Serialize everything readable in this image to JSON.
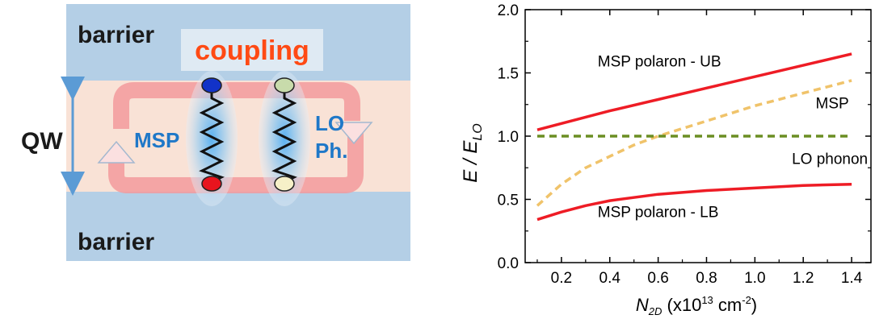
{
  "diagram": {
    "barrier_top": "barrier",
    "barrier_bottom": "barrier",
    "coupling": "coupling",
    "qw": "QW",
    "msp": "MSP",
    "lo_line1": "LO",
    "lo_line2": "Ph.",
    "colors": {
      "barrier": "#b4cfe6",
      "well": "#f9e2d6",
      "label_blue": "#1f78c8",
      "coupling_red": "#ff4a14",
      "arrow": "#f39a9c"
    }
  },
  "chart_data": {
    "type": "line",
    "xlabel": "N2D (x10^13 cm^-2)",
    "ylabel": "E / ELO",
    "xlabel_parts": {
      "N": "N",
      "sub": "2D",
      "rest": " (x10",
      "exp": "13",
      "unit": " cm",
      "unit_exp": "-2",
      "close": ")"
    },
    "ylabel_parts": {
      "E": "E / E",
      "sub": "LO"
    },
    "xlim": [
      0.05,
      1.48
    ],
    "ylim": [
      0.0,
      2.0
    ],
    "xticks": [
      "0.2",
      "0.4",
      "0.6",
      "0.8",
      "1.0",
      "1.2",
      "1.4"
    ],
    "yticks": [
      "0.0",
      "0.5",
      "1.0",
      "1.5",
      "2.0"
    ],
    "series": [
      {
        "name": "MSP polaron - UB",
        "color": "#ee1c25",
        "dash": "solid",
        "x": [
          0.1,
          0.2,
          0.4,
          0.6,
          0.8,
          1.0,
          1.2,
          1.4
        ],
        "y": [
          1.05,
          1.1,
          1.2,
          1.29,
          1.38,
          1.47,
          1.56,
          1.65
        ]
      },
      {
        "name": "MSP",
        "color": "#f0c36a",
        "dash": "dashed",
        "x": [
          0.1,
          0.2,
          0.3,
          0.4,
          0.5,
          0.6,
          0.7,
          0.8,
          1.0,
          1.2,
          1.4
        ],
        "y": [
          0.45,
          0.62,
          0.75,
          0.84,
          0.93,
          1.0,
          1.06,
          1.12,
          1.24,
          1.34,
          1.44
        ]
      },
      {
        "name": "LO phonon",
        "color": "#6b8e23",
        "dash": "dashed",
        "x": [
          0.1,
          1.4
        ],
        "y": [
          1.0,
          1.0
        ]
      },
      {
        "name": "MSP polaron - LB",
        "color": "#ee1c25",
        "dash": "solid",
        "x": [
          0.1,
          0.2,
          0.3,
          0.4,
          0.6,
          0.8,
          1.0,
          1.2,
          1.4
        ],
        "y": [
          0.34,
          0.4,
          0.45,
          0.49,
          0.54,
          0.57,
          0.59,
          0.61,
          0.62
        ]
      }
    ],
    "labels": [
      {
        "text": "MSP polaron - UB",
        "x": 0.35,
        "y": 1.55
      },
      {
        "text": "MSP",
        "x": 1.32,
        "y": 1.22
      },
      {
        "text": "LO phonon",
        "x": 1.31,
        "y": 0.78
      },
      {
        "text": "MSP polaron - LB",
        "x": 0.35,
        "y": 0.36
      }
    ]
  }
}
